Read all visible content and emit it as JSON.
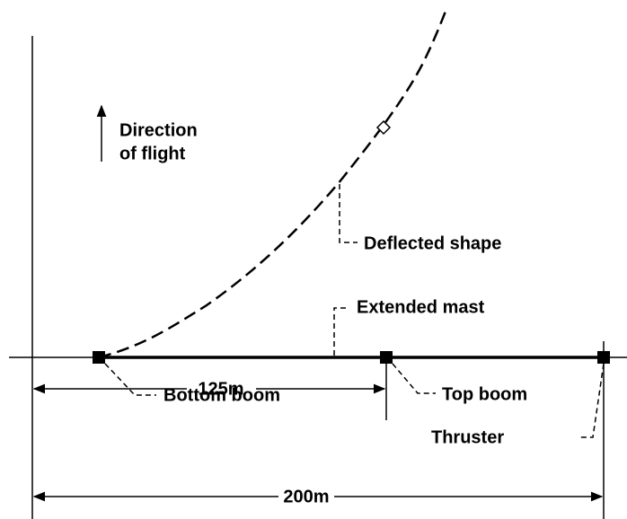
{
  "direction_label": [
    "Direction",
    "of flight"
  ],
  "callouts": {
    "deflected_shape": "Deflected shape",
    "extended_mast": "Extended mast",
    "bottom_boom": "Bottom boom",
    "top_boom": "Top boom",
    "thruster": "Thruster"
  },
  "dimensions": {
    "inner": "125m",
    "outer": "200m"
  }
}
